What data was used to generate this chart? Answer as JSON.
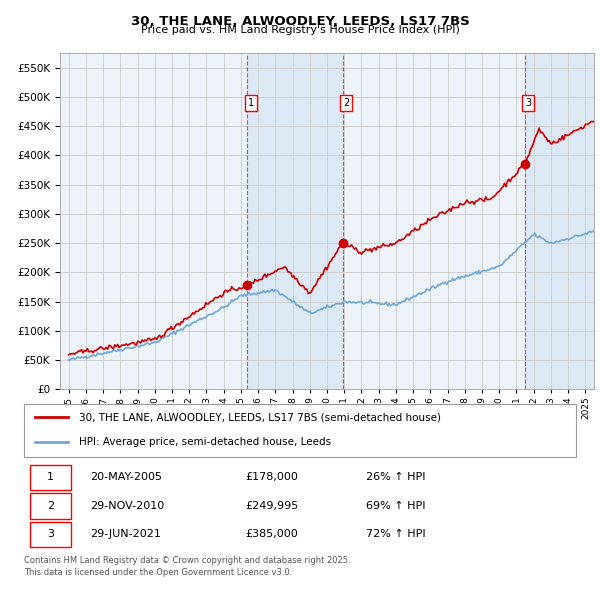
{
  "title": "30, THE LANE, ALWOODLEY, LEEDS, LS17 7BS",
  "subtitle": "Price paid vs. HM Land Registry's House Price Index (HPI)",
  "legend_line1": "30, THE LANE, ALWOODLEY, LEEDS, LS17 7BS (semi-detached house)",
  "legend_line2": "HPI: Average price, semi-detached house, Leeds",
  "sale1_date": 2005.38,
  "sale1_price": 178000,
  "sale2_date": 2010.91,
  "sale2_price": 249995,
  "sale3_date": 2021.49,
  "sale3_price": 385000,
  "table_rows": [
    [
      "1",
      "20-MAY-2005",
      "£178,000",
      "26% ↑ HPI"
    ],
    [
      "2",
      "29-NOV-2010",
      "£249,995",
      "69% ↑ HPI"
    ],
    [
      "3",
      "29-JUN-2021",
      "£385,000",
      "72% ↑ HPI"
    ]
  ],
  "footer": "Contains HM Land Registry data © Crown copyright and database right 2025.\nThis data is licensed under the Open Government Licence v3.0.",
  "ylim": [
    0,
    575000
  ],
  "xlim_start": 1994.5,
  "xlim_end": 2025.5,
  "hpi_color": "#6fa8d8",
  "price_color": "#cc0000",
  "shade_color": "#dce9f5",
  "grid_color": "#cccccc",
  "plot_bg": "#eef3fa"
}
